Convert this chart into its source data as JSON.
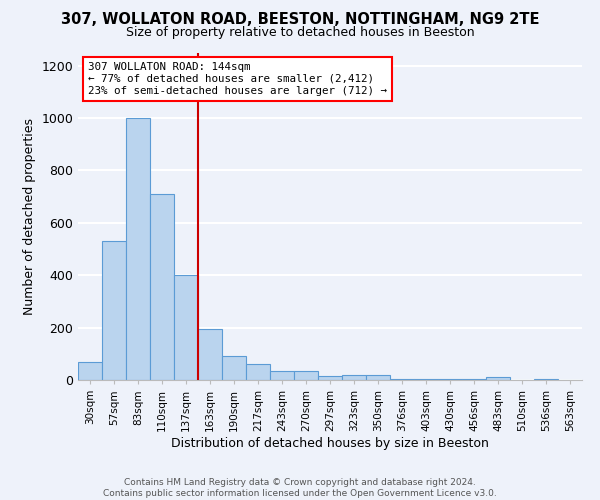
{
  "title1": "307, WOLLATON ROAD, BEESTON, NOTTINGHAM, NG9 2TE",
  "title2": "Size of property relative to detached houses in Beeston",
  "xlabel": "Distribution of detached houses by size in Beeston",
  "ylabel": "Number of detached properties",
  "categories": [
    "30sqm",
    "57sqm",
    "83sqm",
    "110sqm",
    "137sqm",
    "163sqm",
    "190sqm",
    "217sqm",
    "243sqm",
    "270sqm",
    "297sqm",
    "323sqm",
    "350sqm",
    "376sqm",
    "403sqm",
    "430sqm",
    "456sqm",
    "483sqm",
    "510sqm",
    "536sqm",
    "563sqm"
  ],
  "values": [
    70,
    530,
    1000,
    710,
    400,
    195,
    90,
    60,
    35,
    35,
    15,
    20,
    20,
    5,
    5,
    5,
    5,
    10,
    0,
    5,
    0
  ],
  "bar_color": "#bad4ee",
  "bar_edge_color": "#5b9bd5",
  "bar_width": 1.0,
  "red_line_x": 4.5,
  "annotation_text": "307 WOLLATON ROAD: 144sqm\n← 77% of detached houses are smaller (2,412)\n23% of semi-detached houses are larger (712) →",
  "footer": "Contains HM Land Registry data © Crown copyright and database right 2024.\nContains public sector information licensed under the Open Government Licence v3.0.",
  "ylim": [
    0,
    1250
  ],
  "yticks": [
    0,
    200,
    400,
    600,
    800,
    1000,
    1200
  ],
  "background_color": "#eef2fa",
  "grid_color": "white",
  "title1_fontsize": 10.5,
  "title2_fontsize": 9
}
